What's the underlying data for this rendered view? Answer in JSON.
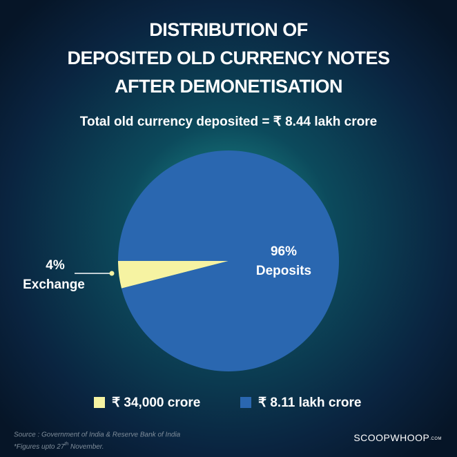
{
  "chart_data": {
    "type": "pie",
    "title": [
      "DISTRIBUTION  OF",
      "DEPOSITED OLD CURRENCY NOTES",
      "AFTER DEMONETISATION"
    ],
    "subtitle": "Total old currency deposited =  ₹ 8.44 lakh crore",
    "categories": [
      "Exchange",
      "Deposits"
    ],
    "values": [
      4,
      96
    ],
    "value_labels": [
      "4%",
      "96%"
    ],
    "colors": [
      "#f6f3a2",
      "#2a67b0"
    ],
    "legend": [
      "₹ 34,000 crore",
      "₹ 8.11 lakh crore"
    ],
    "source": "Source : Government of India & Reserve Bank of India",
    "footnote": [
      "*Figures upto 27",
      "th",
      " November."
    ],
    "brand": [
      "SCOOPWHOOP",
      ".COM"
    ]
  }
}
